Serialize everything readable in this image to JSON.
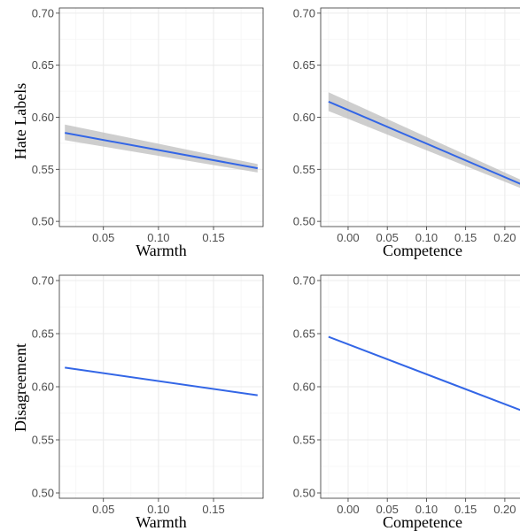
{
  "colors": {
    "line": "#3366e6",
    "band": "#bdbdbd",
    "grid_major": "#ebebeb",
    "grid_minor": "#f5f5f5",
    "panel_border": "#333333",
    "tick_text": "#4d4d4d"
  },
  "row_labels": [
    "Hate Labels",
    "Disagreement"
  ],
  "chart_data": [
    {
      "type": "line",
      "ylabel": "Hate Labels",
      "xlabel": "Warmth",
      "xlim": [
        0.01,
        0.195
      ],
      "ylim": [
        0.495,
        0.705
      ],
      "xticks": [
        0.05,
        0.1,
        0.15
      ],
      "xtick_labels": [
        "0.05",
        "0.10",
        "0.15"
      ],
      "yticks": [
        0.5,
        0.55,
        0.6,
        0.65,
        0.7
      ],
      "ytick_labels": [
        "0.50",
        "0.55",
        "0.60",
        "0.65",
        "0.70"
      ],
      "grid": true,
      "series": [
        {
          "x": [
            0.015,
            0.19
          ],
          "y": [
            0.585,
            0.551
          ],
          "ci_lower": [
            0.578,
            0.547
          ],
          "ci_upper": [
            0.593,
            0.555
          ]
        }
      ]
    },
    {
      "type": "line",
      "ylabel": "",
      "xlabel": "Competence",
      "xlim": [
        -0.035,
        0.225
      ],
      "ylim": [
        0.495,
        0.705
      ],
      "xticks": [
        0.0,
        0.05,
        0.1,
        0.15,
        0.2
      ],
      "xtick_labels": [
        "0.00",
        "0.05",
        "0.10",
        "0.15",
        "0.20"
      ],
      "yticks": [
        0.5,
        0.55,
        0.6,
        0.65,
        0.7
      ],
      "ytick_labels": [
        "0.50",
        "0.55",
        "0.60",
        "0.65",
        "0.70"
      ],
      "grid": true,
      "series": [
        {
          "x": [
            -0.025,
            0.22
          ],
          "y": [
            0.615,
            0.536
          ],
          "ci_lower": [
            0.606,
            0.532
          ],
          "ci_upper": [
            0.624,
            0.54
          ]
        }
      ]
    },
    {
      "type": "line",
      "ylabel": "Disagreement",
      "xlabel": "Warmth",
      "xlim": [
        0.01,
        0.195
      ],
      "ylim": [
        0.495,
        0.705
      ],
      "xticks": [
        0.05,
        0.1,
        0.15
      ],
      "xtick_labels": [
        "0.05",
        "0.10",
        "0.15"
      ],
      "yticks": [
        0.5,
        0.55,
        0.6,
        0.65,
        0.7
      ],
      "ytick_labels": [
        "0.50",
        "0.55",
        "0.60",
        "0.65",
        "0.70"
      ],
      "grid": true,
      "series": [
        {
          "x": [
            0.015,
            0.19
          ],
          "y": [
            0.618,
            0.592
          ]
        }
      ]
    },
    {
      "type": "line",
      "ylabel": "",
      "xlabel": "Competence",
      "xlim": [
        -0.035,
        0.225
      ],
      "ylim": [
        0.495,
        0.705
      ],
      "xticks": [
        0.0,
        0.05,
        0.1,
        0.15,
        0.2
      ],
      "xtick_labels": [
        "0.00",
        "0.05",
        "0.10",
        "0.15",
        "0.20"
      ],
      "yticks": [
        0.5,
        0.55,
        0.6,
        0.65,
        0.7
      ],
      "ytick_labels": [
        "0.50",
        "0.55",
        "0.60",
        "0.65",
        "0.70"
      ],
      "grid": true,
      "series": [
        {
          "x": [
            -0.025,
            0.22
          ],
          "y": [
            0.647,
            0.578
          ]
        }
      ]
    }
  ]
}
